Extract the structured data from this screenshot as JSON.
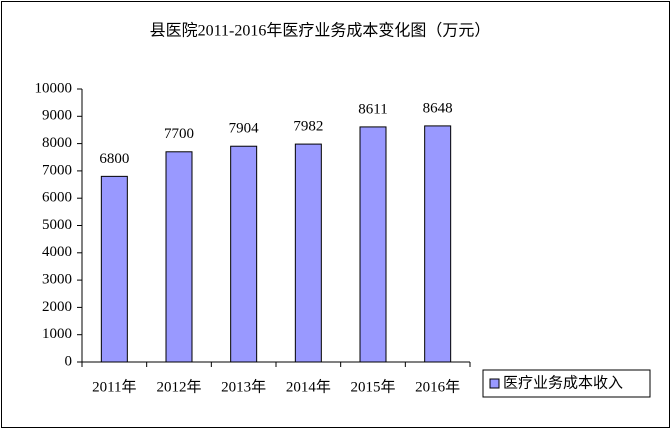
{
  "chart_data": {
    "type": "bar",
    "title": "县医院2011-2016年医疗业务成本变化图（万元）",
    "categories": [
      "2011年",
      "2012年",
      "2013年",
      "2014年",
      "2015年",
      "2016年"
    ],
    "series": [
      {
        "name": "医疗业务成本收入",
        "color": "#9999ff",
        "values": [
          6800,
          7700,
          7904,
          7982,
          8611,
          8648
        ]
      }
    ],
    "ylim": [
      0,
      10000
    ],
    "yticks": [
      0,
      1000,
      2000,
      3000,
      4000,
      5000,
      6000,
      7000,
      8000,
      9000,
      10000
    ],
    "grid": false,
    "legend": "right"
  }
}
